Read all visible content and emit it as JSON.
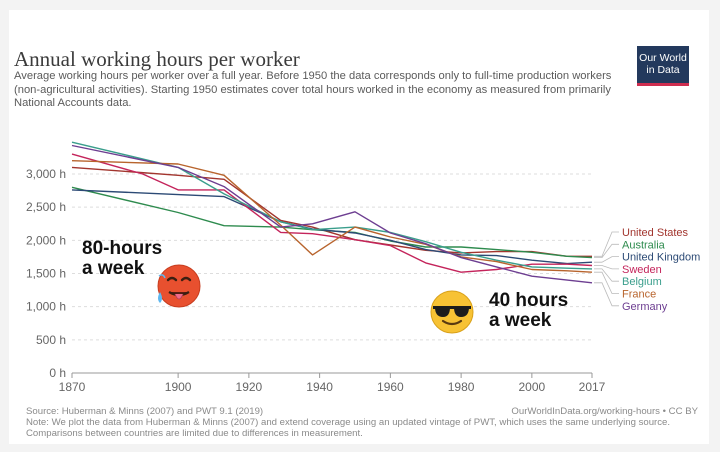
{
  "header": {
    "title": "Annual working hours per worker",
    "subtitle": "Average working hours per worker over a full year. Before 1950 the data corresponds only to full-time production workers (non-agricultural activities). Starting 1950 estimates cover total hours worked in the economy as measured from primarily National Accounts data.",
    "logo_line1": "Our World",
    "logo_line2": "in Data"
  },
  "footer": {
    "source": "Source: Huberman & Minns (2007) and PWT 9.1 (2019)",
    "note": "Note: We plot the data from Huberman & Minns (2007) and extend coverage using an updated vintage of PWT, which uses the same underlying source. Comparisons between countries are limited due to differences in measurement.",
    "url": "OurWorldInData.org/working-hours • CC BY"
  },
  "annotations": {
    "left": [
      "80-hours",
      "a week"
    ],
    "right": [
      "40 hours",
      "a week"
    ]
  },
  "emoji_names": {
    "left": "hot-face-emoji",
    "right": "sunglasses-emoji"
  },
  "chart_data": {
    "type": "line",
    "title": "Annual working hours per worker",
    "xlabel": "",
    "ylabel": "",
    "xlim": [
      1870,
      2017
    ],
    "ylim": [
      0,
      3200
    ],
    "x_ticks": [
      1870,
      1900,
      1920,
      1940,
      1960,
      1980,
      2000,
      2017
    ],
    "x_tick_labels": [
      "1870",
      "1900",
      "1920",
      "1940",
      "1960",
      "1980",
      "2000",
      "2017"
    ],
    "y_ticks": [
      0,
      500,
      1000,
      1500,
      2000,
      2500,
      3000
    ],
    "y_tick_labels": [
      "0 h",
      "500 h",
      "1,000 h",
      "1,500 h",
      "2,000 h",
      "2,500 h",
      "3,000 h"
    ],
    "grid": true,
    "legend_position": "right",
    "series": [
      {
        "name": "United States",
        "color": "#a2352e",
        "x": [
          1870,
          1900,
          1913,
          1929,
          1938,
          1950,
          1960,
          1970,
          1980,
          1990,
          2000,
          2010,
          2017
        ],
        "y": [
          3100,
          2980,
          2920,
          2300,
          2200,
          2010,
          1930,
          1850,
          1810,
          1830,
          1830,
          1760,
          1760
        ]
      },
      {
        "name": "Australia",
        "color": "#2e8b4e",
        "x": [
          1870,
          1900,
          1913,
          1929,
          1938,
          1950,
          1960,
          1970,
          1980,
          1990,
          2000,
          2010,
          2017
        ],
        "y": [
          2800,
          2420,
          2220,
          2200,
          2160,
          2120,
          1990,
          1900,
          1900,
          1860,
          1820,
          1760,
          1740
        ]
      },
      {
        "name": "United Kingdom",
        "color": "#2c4a75",
        "x": [
          1870,
          1900,
          1913,
          1929,
          1938,
          1950,
          1960,
          1970,
          1980,
          1990,
          2000,
          2010,
          2017
        ],
        "y": [
          2760,
          2690,
          2660,
          2280,
          2170,
          2110,
          2000,
          1860,
          1780,
          1770,
          1700,
          1650,
          1670
        ]
      },
      {
        "name": "Sweden",
        "color": "#c4245b",
        "x": [
          1870,
          1890,
          1900,
          1913,
          1929,
          1938,
          1950,
          1960,
          1970,
          1980,
          1990,
          2000,
          2010,
          2017
        ],
        "y": [
          3300,
          3000,
          2760,
          2760,
          2120,
          2100,
          2010,
          1920,
          1660,
          1520,
          1560,
          1640,
          1640,
          1620
        ]
      },
      {
        "name": "Belgium",
        "color": "#3a9e8c",
        "x": [
          1870,
          1900,
          1913,
          1929,
          1938,
          1950,
          1960,
          1970,
          1980,
          1990,
          2000,
          2010,
          2017
        ],
        "y": [
          3480,
          3100,
          2700,
          2280,
          2160,
          2200,
          2120,
          1980,
          1820,
          1700,
          1600,
          1580,
          1570
        ]
      },
      {
        "name": "France",
        "color": "#b8642d",
        "x": [
          1870,
          1900,
          1913,
          1929,
          1938,
          1950,
          1960,
          1970,
          1980,
          1990,
          2000,
          2010,
          2017
        ],
        "y": [
          3200,
          3150,
          2980,
          2230,
          1780,
          2200,
          2050,
          1940,
          1750,
          1680,
          1560,
          1540,
          1520
        ]
      },
      {
        "name": "Germany",
        "color": "#6d3e91",
        "x": [
          1870,
          1900,
          1913,
          1929,
          1938,
          1950,
          1960,
          1970,
          1980,
          1990,
          2000,
          2010,
          2017
        ],
        "y": [
          3430,
          3100,
          2810,
          2200,
          2250,
          2430,
          2110,
          1950,
          1740,
          1600,
          1460,
          1400,
          1360
        ]
      }
    ]
  }
}
